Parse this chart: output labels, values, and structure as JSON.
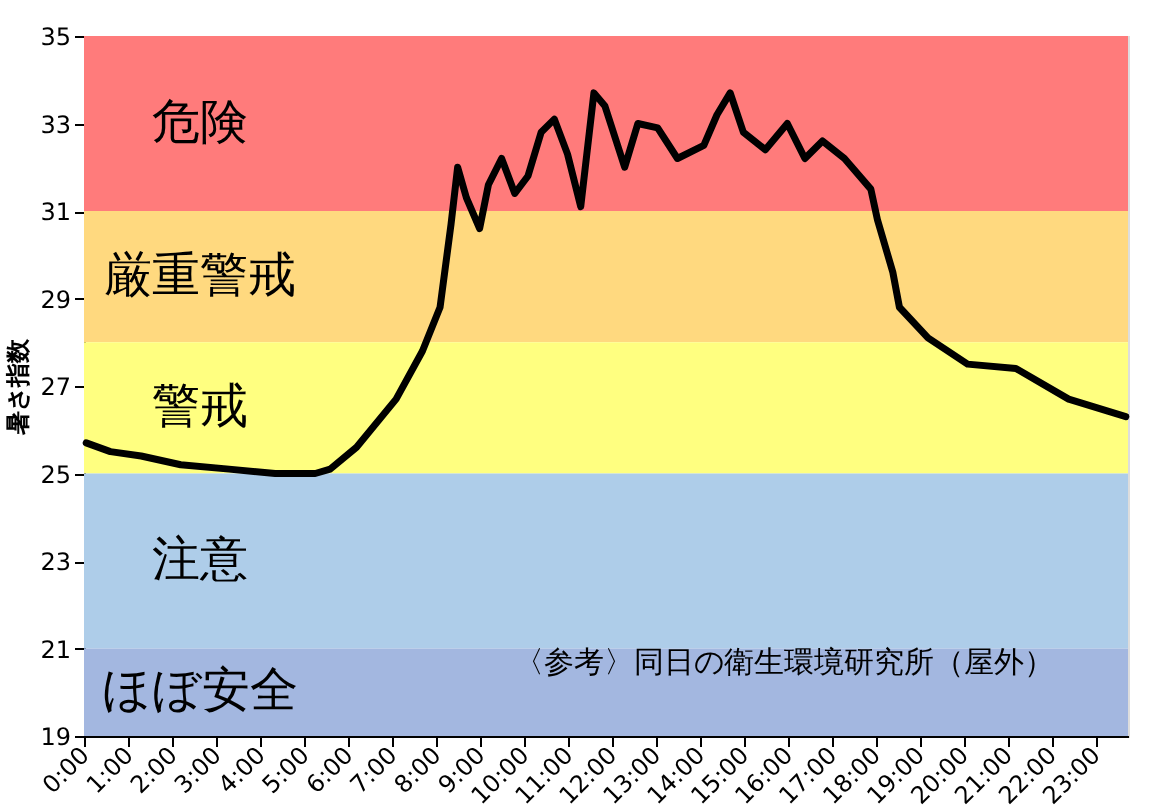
{
  "chart_data": {
    "type": "line",
    "ylabel": "暑さ指数",
    "x": [
      0.05,
      0.6,
      1.3,
      2.2,
      3.3,
      4.35,
      5.26,
      5.6,
      6.2,
      7.1,
      7.7,
      8.1,
      8.35,
      8.5,
      8.7,
      9.0,
      9.2,
      9.5,
      9.8,
      10.1,
      10.4,
      10.7,
      11.0,
      11.3,
      11.6,
      11.85,
      12.3,
      12.6,
      13.05,
      13.5,
      14.1,
      14.4,
      14.7,
      15.0,
      15.5,
      16.0,
      16.4,
      16.8,
      17.3,
      17.9,
      18.05,
      18.4,
      18.55,
      19.2,
      20.1,
      21.2,
      22.4,
      23.7
    ],
    "series": [
      {
        "color": "#000000",
        "values": [
          25.7,
          25.5,
          25.4,
          25.2,
          25.1,
          25.0,
          25.0,
          25.1,
          25.6,
          26.7,
          27.8,
          28.8,
          30.7,
          32.0,
          31.3,
          30.6,
          31.6,
          32.2,
          31.4,
          31.8,
          32.8,
          33.1,
          32.3,
          31.1,
          33.7,
          33.4,
          32.0,
          33.0,
          32.9,
          32.2,
          32.5,
          33.2,
          33.7,
          32.8,
          32.4,
          33.0,
          32.2,
          32.6,
          32.2,
          31.5,
          30.8,
          29.6,
          28.8,
          28.1,
          27.5,
          27.4,
          26.7,
          26.3
        ]
      }
    ],
    "xlim": [
      0,
      23.75
    ],
    "xticks": [
      {
        "value": 0,
        "label": "0:00"
      },
      {
        "value": 1,
        "label": "1:00"
      },
      {
        "value": 2,
        "label": "2:00"
      },
      {
        "value": 3,
        "label": "3:00"
      },
      {
        "value": 4,
        "label": "4:00"
      },
      {
        "value": 5,
        "label": "5:00"
      },
      {
        "value": 6,
        "label": "6:00"
      },
      {
        "value": 7,
        "label": "7:00"
      },
      {
        "value": 8,
        "label": "8:00"
      },
      {
        "value": 9,
        "label": "9:00"
      },
      {
        "value": 10,
        "label": "10:00"
      },
      {
        "value": 11,
        "label": "11:00"
      },
      {
        "value": 12,
        "label": "12:00"
      },
      {
        "value": 13,
        "label": "13:00"
      },
      {
        "value": 14,
        "label": "14:00"
      },
      {
        "value": 15,
        "label": "15:00"
      },
      {
        "value": 16,
        "label": "16:00"
      },
      {
        "value": 17,
        "label": "17:00"
      },
      {
        "value": 18,
        "label": "18:00"
      },
      {
        "value": 19,
        "label": "19:00"
      },
      {
        "value": 20,
        "label": "20:00"
      },
      {
        "value": 21,
        "label": "21:00"
      },
      {
        "value": 22,
        "label": "22:00"
      },
      {
        "value": 23,
        "label": "23:00"
      }
    ],
    "ylim": [
      19,
      35
    ],
    "yticks": [
      19,
      21,
      23,
      25,
      27,
      29,
      31,
      33,
      35
    ],
    "bands": [
      {
        "axis": "y",
        "from": 31,
        "to": 35,
        "label": "危険",
        "color": "#ff7b7b"
      },
      {
        "axis": "y",
        "from": 28,
        "to": 31,
        "label": "厳重警戒",
        "color": "#ffd97f"
      },
      {
        "axis": "y",
        "from": 25,
        "to": 28,
        "label": "警戒",
        "color": "#ffff80"
      },
      {
        "axis": "y",
        "from": 21,
        "to": 25,
        "label": "注意",
        "color": "#aecde9"
      },
      {
        "axis": "y",
        "from": 19,
        "to": 21,
        "label": "ほぼ安全",
        "color": "#a3b7e0"
      }
    ],
    "annotations": [
      "〈参考〉同日の衛生環境研究所（屋外）"
    ],
    "grid": false,
    "line_style": "solid",
    "marker": "none"
  }
}
